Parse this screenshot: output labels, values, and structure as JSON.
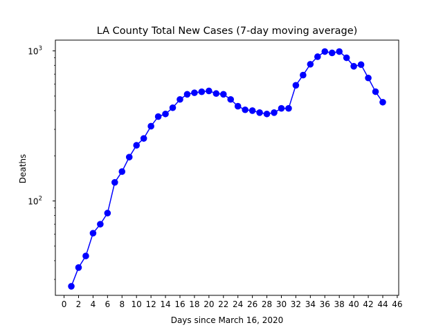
{
  "chart_data": {
    "type": "line",
    "title": "LA County Total New Cases (7-day moving average)",
    "xlabel": "Days since March 16, 2020",
    "ylabel": "Deaths",
    "yscale": "log",
    "xlim": [
      -1.2,
      46.2
    ],
    "ylim": [
      23.5,
      1180
    ],
    "xticks": [
      0,
      2,
      4,
      6,
      8,
      10,
      12,
      14,
      16,
      18,
      20,
      22,
      24,
      26,
      28,
      30,
      32,
      34,
      36,
      38,
      40,
      42,
      44,
      46
    ],
    "yticks": [
      {
        "value": 100,
        "base": "10",
        "exp": "2"
      },
      {
        "value": 1000,
        "base": "10",
        "exp": "3"
      }
    ],
    "grid": false,
    "legend": "none",
    "series": [
      {
        "color": "#0000ff",
        "marker": "circle",
        "x": [
          1,
          2,
          3,
          4,
          5,
          6,
          7,
          8,
          9,
          10,
          11,
          12,
          13,
          14,
          15,
          16,
          17,
          18,
          19,
          20,
          21,
          22,
          23,
          24,
          25,
          26,
          27,
          28,
          29,
          30,
          31,
          32,
          33,
          34,
          35,
          36,
          37,
          38,
          39,
          40,
          41,
          42,
          43,
          44
        ],
        "y": [
          27,
          36,
          43,
          61,
          70,
          83,
          133,
          157,
          196,
          235,
          261,
          315,
          365,
          380,
          418,
          475,
          514,
          526,
          534,
          541,
          520,
          514,
          475,
          428,
          405,
          400,
          388,
          380,
          388,
          414,
          414,
          590,
          690,
          815,
          915,
          990,
          970,
          990,
          900,
          790,
          810,
          660,
          535,
          455
        ]
      }
    ]
  }
}
